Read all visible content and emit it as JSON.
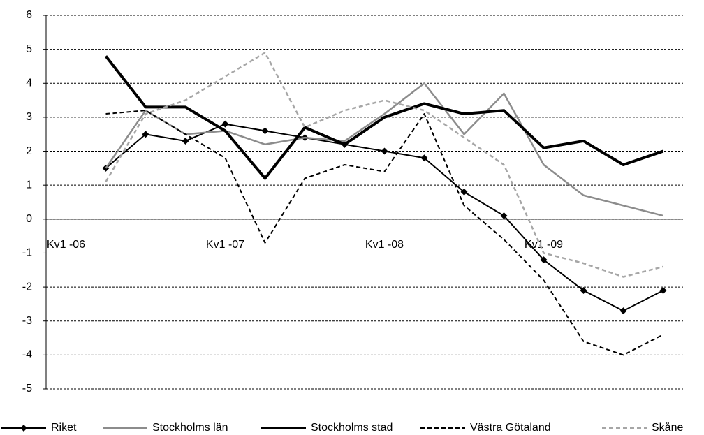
{
  "chart_data": {
    "type": "line",
    "categories": [
      "Kv1 -06",
      null,
      null,
      null,
      "Kv1 -07",
      null,
      null,
      null,
      "Kv1 -08",
      null,
      null,
      null,
      "Kv1 -09",
      null,
      null,
      null
    ],
    "series": [
      {
        "name": "Riket",
        "color": "#000000",
        "line_width": 2,
        "dashed": false,
        "marker": "diamond",
        "values": [
          null,
          1.5,
          2.5,
          2.3,
          2.8,
          2.6,
          2.4,
          2.2,
          2.0,
          1.8,
          0.8,
          0.1,
          -1.2,
          -2.1,
          -2.7,
          -2.1
        ]
      },
      {
        "name": "Stockholms län",
        "color": "#8c8c8c",
        "line_width": 2.5,
        "dashed": false,
        "marker": "none",
        "values": [
          null,
          1.5,
          3.2,
          2.5,
          2.6,
          2.2,
          2.4,
          2.3,
          3.1,
          4.0,
          2.5,
          3.7,
          1.6,
          0.7,
          0.4,
          0.1
        ]
      },
      {
        "name": "Stockholms stad",
        "color": "#000000",
        "line_width": 4,
        "dashed": false,
        "marker": "none",
        "values": [
          null,
          4.8,
          3.3,
          3.3,
          2.6,
          1.2,
          2.7,
          2.2,
          3.0,
          3.4,
          3.1,
          3.2,
          2.1,
          2.3,
          1.6,
          2.0
        ]
      },
      {
        "name": "Västra Götaland",
        "color": "#000000",
        "line_width": 2,
        "dashed": true,
        "marker": "none",
        "values": [
          null,
          3.1,
          3.2,
          2.5,
          1.8,
          -0.7,
          1.2,
          1.6,
          1.4,
          3.1,
          0.4,
          -0.6,
          -1.8,
          -3.6,
          -4.0,
          -3.4
        ]
      },
      {
        "name": "Skåne",
        "color": "#a6a6a6",
        "line_width": 2.5,
        "dashed": true,
        "marker": "none",
        "values": [
          null,
          1.1,
          3.1,
          3.5,
          4.2,
          4.9,
          2.7,
          3.2,
          3.5,
          3.2,
          2.4,
          1.6,
          -1.0,
          -1.3,
          -1.7,
          -1.4
        ]
      }
    ],
    "ylim": [
      -5,
      6
    ],
    "yticks": [
      -5,
      -4,
      -3,
      -2,
      -1,
      0,
      1,
      2,
      3,
      4,
      5,
      6
    ],
    "grid": true,
    "legend": "bottom"
  }
}
